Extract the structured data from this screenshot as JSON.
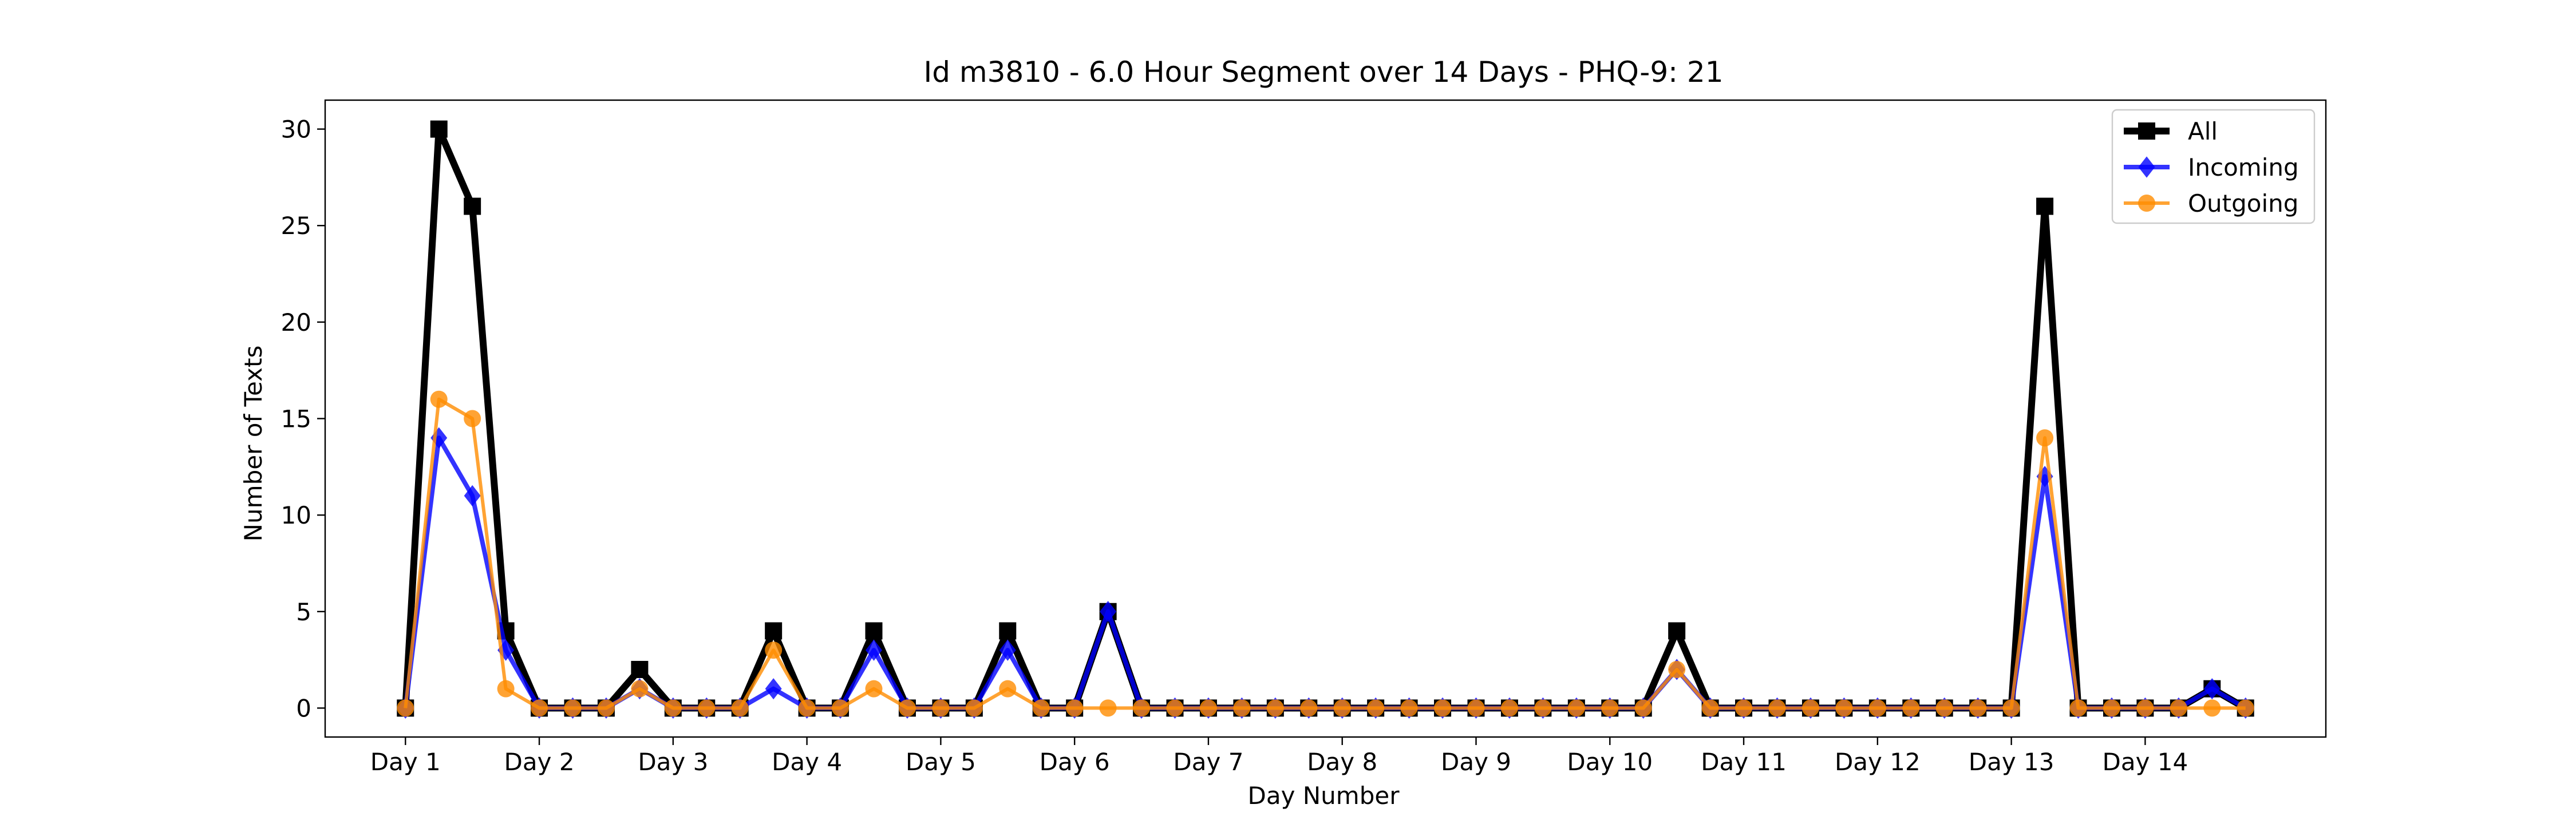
{
  "chart_data": {
    "type": "line",
    "title": "Id m3810 - 6.0 Hour Segment over 14 Days - PHQ-9: 21",
    "xlabel": "Day Number",
    "ylabel": "Number of Texts",
    "x_tick_labels": [
      "Day 1",
      "Day 2",
      "Day 3",
      "Day 4",
      "Day 5",
      "Day 6",
      "Day 7",
      "Day 8",
      "Day 9",
      "Day 10",
      "Day 11",
      "Day 12",
      "Day 13",
      "Day 14"
    ],
    "x_segments_per_day": 4,
    "x_tick_every": 4,
    "yticks": [
      0,
      5,
      10,
      15,
      20,
      25,
      30
    ],
    "xlim": [
      -2.4,
      57.4
    ],
    "ylim": [
      -1.5,
      31.5
    ],
    "grid": false,
    "legend_position": "upper right",
    "series": [
      {
        "name": "All",
        "color": "#000000",
        "marker": "square",
        "values": [
          0,
          30,
          26,
          4,
          0,
          0,
          0,
          2,
          0,
          0,
          0,
          4,
          0,
          0,
          4,
          0,
          0,
          0,
          4,
          0,
          0,
          5,
          0,
          0,
          0,
          0,
          0,
          0,
          0,
          0,
          0,
          0,
          0,
          0,
          0,
          0,
          0,
          0,
          4,
          0,
          0,
          0,
          0,
          0,
          0,
          0,
          0,
          0,
          0,
          26,
          0,
          0,
          0,
          0,
          1,
          0
        ]
      },
      {
        "name": "Incoming",
        "color": "#0000ff",
        "marker": "diamond",
        "values": [
          0,
          14,
          11,
          3,
          0,
          0,
          0,
          1,
          0,
          0,
          0,
          1,
          0,
          0,
          3,
          0,
          0,
          0,
          3,
          0,
          0,
          5,
          0,
          0,
          0,
          0,
          0,
          0,
          0,
          0,
          0,
          0,
          0,
          0,
          0,
          0,
          0,
          0,
          2,
          0,
          0,
          0,
          0,
          0,
          0,
          0,
          0,
          0,
          0,
          12,
          0,
          0,
          0,
          0,
          1,
          0
        ]
      },
      {
        "name": "Outgoing",
        "color": "#ff8c00",
        "marker": "circle",
        "values": [
          0,
          16,
          15,
          1,
          0,
          0,
          0,
          1,
          0,
          0,
          0,
          3,
          0,
          0,
          1,
          0,
          0,
          0,
          1,
          0,
          0,
          0,
          0,
          0,
          0,
          0,
          0,
          0,
          0,
          0,
          0,
          0,
          0,
          0,
          0,
          0,
          0,
          0,
          2,
          0,
          0,
          0,
          0,
          0,
          0,
          0,
          0,
          0,
          0,
          14,
          0,
          0,
          0,
          0,
          0,
          0
        ]
      }
    ]
  }
}
